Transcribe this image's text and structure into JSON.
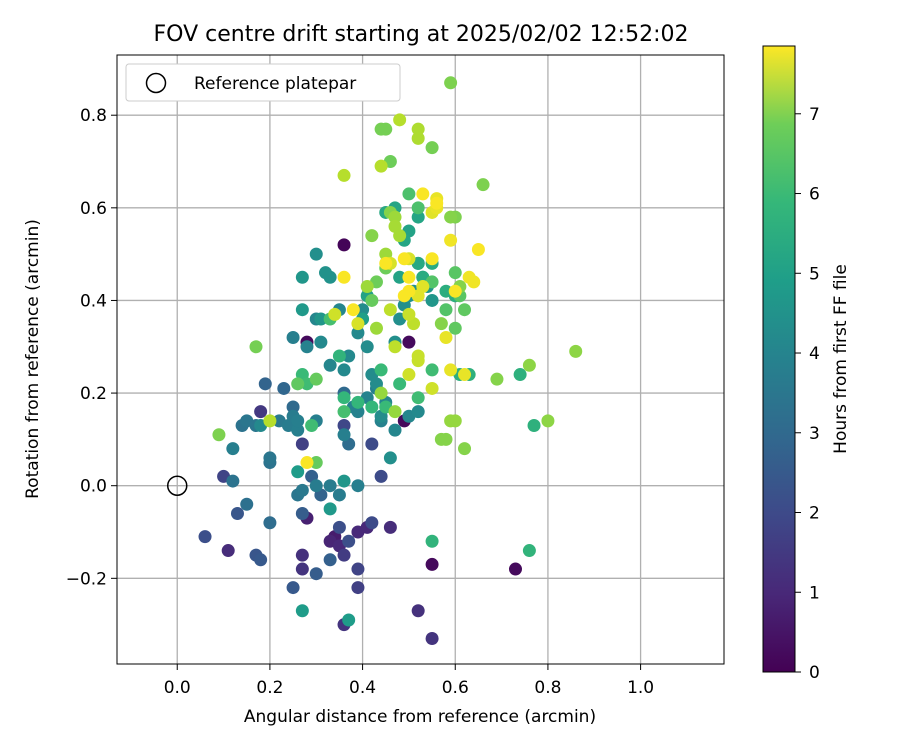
{
  "chart_data": {
    "type": "scatter",
    "title": "FOV centre drift starting at 2025/02/02 12:52:02",
    "xlabel": "Angular distance from reference (arcmin)",
    "ylabel": "Rotation from reference (arcmin)",
    "xlim": [
      -0.13,
      1.18
    ],
    "ylim": [
      -0.385,
      0.93
    ],
    "xticks": [
      0.0,
      0.2,
      0.4,
      0.6,
      0.8,
      1.0
    ],
    "xtick_labels": [
      "0.0",
      "0.2",
      "0.4",
      "0.6",
      "0.8",
      "1.0"
    ],
    "yticks": [
      -0.2,
      0.0,
      0.2,
      0.4,
      0.6,
      0.8
    ],
    "ytick_labels": [
      "−0.2",
      "0.0",
      "0.2",
      "0.4",
      "0.6",
      "0.8"
    ],
    "grid": true,
    "legend": {
      "placement": "top-left",
      "entries": [
        "Reference platepar"
      ]
    },
    "reference_point": {
      "x": 0.0,
      "y": 0.0,
      "label": "Reference platepar"
    },
    "colorbar": {
      "label": "Hours from first FF file",
      "colormap": "viridis",
      "range": [
        0,
        7.85
      ],
      "ticks": [
        0,
        1,
        2,
        3,
        4,
        5,
        6,
        7
      ],
      "tick_labels": [
        "0",
        "1",
        "2",
        "3",
        "4",
        "5",
        "6",
        "7"
      ]
    },
    "points": [
      [
        0.36,
        0.52,
        0.1
      ],
      [
        0.28,
        0.31,
        0.2
      ],
      [
        0.5,
        0.31,
        0.2
      ],
      [
        0.49,
        0.14,
        0.2
      ],
      [
        0.55,
        -0.17,
        0.2
      ],
      [
        0.73,
        -0.18,
        0.2
      ],
      [
        0.28,
        -0.07,
        0.7
      ],
      [
        0.34,
        -0.11,
        0.6
      ],
      [
        0.33,
        -0.12,
        0.8
      ],
      [
        0.35,
        -0.13,
        0.9
      ],
      [
        0.39,
        -0.1,
        0.9
      ],
      [
        0.41,
        -0.09,
        0.9
      ],
      [
        0.46,
        -0.09,
        1.0
      ],
      [
        0.52,
        -0.27,
        1.1
      ],
      [
        0.55,
        -0.33,
        1.2
      ],
      [
        0.36,
        -0.3,
        1.2
      ],
      [
        0.27,
        -0.15,
        1.1
      ],
      [
        0.27,
        -0.18,
        1.2
      ],
      [
        0.36,
        -0.15,
        1.4
      ],
      [
        0.39,
        -0.22,
        1.5
      ],
      [
        0.39,
        -0.18,
        1.6
      ],
      [
        0.11,
        -0.14,
        1.0
      ],
      [
        0.1,
        0.02,
        1.6
      ],
      [
        0.18,
        0.16,
        1.3
      ],
      [
        0.27,
        0.09,
        1.5
      ],
      [
        0.36,
        0.13,
        1.7
      ],
      [
        0.42,
        0.09,
        1.8
      ],
      [
        0.44,
        0.02,
        1.8
      ],
      [
        0.42,
        -0.08,
        1.8
      ],
      [
        0.35,
        -0.09,
        1.9
      ],
      [
        0.37,
        -0.12,
        1.9
      ],
      [
        0.06,
        -0.11,
        1.9
      ],
      [
        0.17,
        -0.15,
        2.1
      ],
      [
        0.18,
        -0.16,
        2.2
      ],
      [
        0.13,
        -0.06,
        2.1
      ],
      [
        0.25,
        -0.22,
        2.2
      ],
      [
        0.3,
        -0.19,
        2.3
      ],
      [
        0.33,
        -0.16,
        2.4
      ],
      [
        0.27,
        -0.06,
        2.3
      ],
      [
        0.29,
        0.02,
        2.4
      ],
      [
        0.31,
        -0.02,
        2.5
      ],
      [
        0.19,
        0.22,
        2.5
      ],
      [
        0.23,
        0.21,
        2.6
      ],
      [
        0.25,
        0.17,
        2.7
      ],
      [
        0.36,
        0.2,
        2.7
      ],
      [
        0.37,
        0.09,
        2.8
      ],
      [
        0.2,
        -0.08,
        2.8
      ],
      [
        0.15,
        -0.04,
        2.9
      ],
      [
        0.12,
        0.01,
        3.0
      ],
      [
        0.2,
        0.05,
        3.0
      ],
      [
        0.2,
        0.06,
        3.1
      ],
      [
        0.26,
        -0.02,
        3.1
      ],
      [
        0.27,
        -0.01,
        3.2
      ],
      [
        0.3,
        0.0,
        3.3
      ],
      [
        0.33,
        0.0,
        3.3
      ],
      [
        0.35,
        -0.02,
        3.3
      ],
      [
        0.39,
        0.0,
        3.4
      ],
      [
        0.14,
        0.13,
        3.0
      ],
      [
        0.15,
        0.14,
        3.1
      ],
      [
        0.17,
        0.13,
        3.1
      ],
      [
        0.22,
        0.14,
        3.2
      ],
      [
        0.24,
        0.13,
        3.3
      ],
      [
        0.25,
        0.15,
        3.3
      ],
      [
        0.26,
        0.12,
        3.4
      ],
      [
        0.26,
        0.14,
        3.4
      ],
      [
        0.3,
        0.14,
        3.4
      ],
      [
        0.36,
        0.11,
        3.4
      ],
      [
        0.38,
        0.17,
        3.5
      ],
      [
        0.39,
        0.16,
        3.5
      ],
      [
        0.41,
        0.19,
        3.5
      ],
      [
        0.43,
        0.21,
        3.4
      ],
      [
        0.44,
        0.14,
        3.5
      ],
      [
        0.45,
        0.18,
        3.6
      ],
      [
        0.47,
        0.12,
        3.6
      ],
      [
        0.5,
        0.15,
        3.6
      ],
      [
        0.52,
        0.16,
        3.7
      ],
      [
        0.12,
        0.08,
        3.4
      ],
      [
        0.18,
        0.13,
        3.7
      ],
      [
        0.25,
        0.32,
        3.4
      ],
      [
        0.28,
        0.3,
        3.5
      ],
      [
        0.3,
        0.36,
        3.6
      ],
      [
        0.31,
        0.31,
        3.7
      ],
      [
        0.33,
        0.26,
        3.6
      ],
      [
        0.35,
        0.38,
        3.6
      ],
      [
        0.36,
        0.25,
        3.7
      ],
      [
        0.37,
        0.28,
        3.7
      ],
      [
        0.39,
        0.33,
        3.7
      ],
      [
        0.4,
        0.38,
        3.8
      ],
      [
        0.41,
        0.3,
        3.8
      ],
      [
        0.42,
        0.24,
        3.8
      ],
      [
        0.43,
        0.22,
        3.8
      ],
      [
        0.44,
        0.15,
        3.8
      ],
      [
        0.46,
        0.06,
        3.9
      ],
      [
        0.47,
        0.31,
        3.9
      ],
      [
        0.48,
        0.36,
        3.9
      ],
      [
        0.49,
        0.39,
        3.9
      ],
      [
        0.5,
        0.41,
        4.0
      ],
      [
        0.51,
        0.42,
        4.0
      ],
      [
        0.52,
        0.48,
        4.0
      ],
      [
        0.53,
        0.45,
        4.1
      ],
      [
        0.54,
        0.43,
        4.1
      ],
      [
        0.55,
        0.4,
        4.1
      ],
      [
        0.3,
        0.5,
        3.9
      ],
      [
        0.32,
        0.46,
        4.0
      ],
      [
        0.33,
        0.45,
        4.0
      ],
      [
        0.27,
        0.45,
        4.1
      ],
      [
        0.31,
        0.36,
        4.1
      ],
      [
        0.27,
        0.38,
        4.2
      ],
      [
        0.36,
        0.01,
        4.1
      ],
      [
        0.33,
        -0.05,
        4.2
      ],
      [
        0.26,
        0.03,
        4.3
      ],
      [
        0.27,
        -0.27,
        4.3
      ],
      [
        0.37,
        -0.29,
        4.3
      ],
      [
        0.4,
        0.36,
        4.4
      ],
      [
        0.41,
        0.41,
        4.5
      ],
      [
        0.48,
        0.45,
        4.5
      ],
      [
        0.5,
        0.55,
        4.5
      ],
      [
        0.49,
        0.53,
        4.6
      ],
      [
        0.52,
        0.58,
        4.6
      ],
      [
        0.47,
        0.6,
        4.6
      ],
      [
        0.45,
        0.59,
        4.7
      ],
      [
        0.52,
        0.48,
        4.7
      ],
      [
        0.53,
        0.45,
        4.8
      ],
      [
        0.55,
        0.48,
        4.8
      ],
      [
        0.58,
        0.42,
        4.9
      ],
      [
        0.6,
        0.41,
        4.9
      ],
      [
        0.61,
        0.24,
        4.9
      ],
      [
        0.63,
        0.24,
        5.0
      ],
      [
        0.74,
        0.24,
        5.0
      ],
      [
        0.77,
        0.13,
        5.0
      ],
      [
        0.76,
        -0.14,
        5.1
      ],
      [
        0.55,
        -0.12,
        5.1
      ],
      [
        0.35,
        0.28,
        5.1
      ],
      [
        0.36,
        0.19,
        5.2
      ],
      [
        0.39,
        0.18,
        5.2
      ],
      [
        0.42,
        0.17,
        5.2
      ],
      [
        0.44,
        0.25,
        5.3
      ],
      [
        0.45,
        0.17,
        5.3
      ],
      [
        0.48,
        0.22,
        5.3
      ],
      [
        0.52,
        0.19,
        5.4
      ],
      [
        0.55,
        0.25,
        5.4
      ],
      [
        0.27,
        0.24,
        5.3
      ],
      [
        0.29,
        0.13,
        5.4
      ],
      [
        0.28,
        0.22,
        5.4
      ],
      [
        0.33,
        0.36,
        5.5
      ],
      [
        0.36,
        0.16,
        5.5
      ],
      [
        0.5,
        0.63,
        5.6
      ],
      [
        0.52,
        0.6,
        5.6
      ],
      [
        0.55,
        0.44,
        5.7
      ],
      [
        0.58,
        0.38,
        5.7
      ],
      [
        0.6,
        0.46,
        5.8
      ],
      [
        0.61,
        0.41,
        5.8
      ],
      [
        0.6,
        0.34,
        5.9
      ],
      [
        0.62,
        0.38,
        5.9
      ],
      [
        0.26,
        0.22,
        5.9
      ],
      [
        0.3,
        0.23,
        6.0
      ],
      [
        0.3,
        0.05,
        6.0
      ],
      [
        0.42,
        0.4,
        6.0
      ],
      [
        0.43,
        0.44,
        6.1
      ],
      [
        0.45,
        0.47,
        6.1
      ],
      [
        0.46,
        0.7,
        6.1
      ],
      [
        0.44,
        0.77,
        6.2
      ],
      [
        0.45,
        0.77,
        6.2
      ],
      [
        0.55,
        0.73,
        6.2
      ],
      [
        0.59,
        0.87,
        6.3
      ],
      [
        0.66,
        0.65,
        6.3
      ],
      [
        0.6,
        0.58,
        6.3
      ],
      [
        0.59,
        0.58,
        6.4
      ],
      [
        0.57,
        0.35,
        6.4
      ],
      [
        0.61,
        0.43,
        6.4
      ],
      [
        0.46,
        0.59,
        6.4
      ],
      [
        0.42,
        0.54,
        6.4
      ],
      [
        0.17,
        0.3,
        6.2
      ],
      [
        0.09,
        0.11,
        6.3
      ],
      [
        0.57,
        0.1,
        6.4
      ],
      [
        0.58,
        0.1,
        6.4
      ],
      [
        0.62,
        0.08,
        6.4
      ],
      [
        0.69,
        0.23,
        6.4
      ],
      [
        0.76,
        0.26,
        6.5
      ],
      [
        0.8,
        0.14,
        6.5
      ],
      [
        0.86,
        0.29,
        6.5
      ],
      [
        0.59,
        0.14,
        6.6
      ],
      [
        0.6,
        0.14,
        6.6
      ],
      [
        0.47,
        0.16,
        6.6
      ],
      [
        0.44,
        0.2,
        6.6
      ],
      [
        0.43,
        0.34,
        6.7
      ],
      [
        0.41,
        0.43,
        6.7
      ],
      [
        0.45,
        0.5,
        6.7
      ],
      [
        0.47,
        0.58,
        6.7
      ],
      [
        0.47,
        0.56,
        6.8
      ],
      [
        0.48,
        0.54,
        6.8
      ],
      [
        0.52,
        0.75,
        6.9
      ],
      [
        0.52,
        0.77,
        6.9
      ],
      [
        0.48,
        0.79,
        7.0
      ],
      [
        0.44,
        0.69,
        7.0
      ],
      [
        0.36,
        0.67,
        7.0
      ],
      [
        0.46,
        0.38,
        7.1
      ],
      [
        0.47,
        0.3,
        7.1
      ],
      [
        0.51,
        0.35,
        7.1
      ],
      [
        0.5,
        0.37,
        7.2
      ],
      [
        0.52,
        0.28,
        7.2
      ],
      [
        0.52,
        0.27,
        7.2
      ],
      [
        0.55,
        0.21,
        7.3
      ],
      [
        0.5,
        0.24,
        7.3
      ],
      [
        0.2,
        0.14,
        7.0
      ],
      [
        0.34,
        0.37,
        7.3
      ],
      [
        0.39,
        0.35,
        7.4
      ],
      [
        0.46,
        0.48,
        7.4
      ],
      [
        0.5,
        0.49,
        7.4
      ],
      [
        0.52,
        0.41,
        7.5
      ],
      [
        0.53,
        0.43,
        7.5
      ],
      [
        0.55,
        0.59,
        7.5
      ],
      [
        0.56,
        0.6,
        7.6
      ],
      [
        0.56,
        0.62,
        7.6
      ],
      [
        0.58,
        0.32,
        7.6
      ],
      [
        0.59,
        0.25,
        7.6
      ],
      [
        0.62,
        0.24,
        7.6
      ],
      [
        0.63,
        0.45,
        7.7
      ],
      [
        0.64,
        0.44,
        7.7
      ],
      [
        0.59,
        0.53,
        7.7
      ],
      [
        0.53,
        0.63,
        7.8
      ],
      [
        0.56,
        0.61,
        7.8
      ],
      [
        0.36,
        0.45,
        7.8
      ],
      [
        0.38,
        0.38,
        7.8
      ],
      [
        0.49,
        0.49,
        7.8
      ],
      [
        0.5,
        0.42,
        7.8
      ],
      [
        0.49,
        0.41,
        7.8
      ],
      [
        0.45,
        0.48,
        7.8
      ],
      [
        0.65,
        0.51,
        7.8
      ],
      [
        0.28,
        0.05,
        7.8
      ],
      [
        0.5,
        0.45,
        7.8
      ],
      [
        0.6,
        0.42,
        7.8
      ],
      [
        0.55,
        0.49,
        7.8
      ]
    ]
  }
}
